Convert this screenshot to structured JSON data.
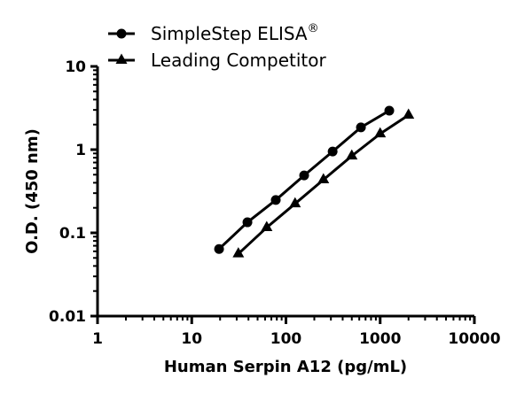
{
  "chart_data": {
    "type": "line",
    "title": "",
    "xlabel": "Human Serpin A12 (pg/mL)",
    "ylabel": "O.D. (450 nm)",
    "xscale": "log",
    "yscale": "log",
    "xlim": [
      1,
      10000
    ],
    "ylim": [
      0.01,
      10
    ],
    "xticks": [
      "1",
      "10",
      "100",
      "1000",
      "10000"
    ],
    "yticks": [
      "10",
      "1",
      "0.1",
      "0.01"
    ],
    "grid": false,
    "legend_position": "top-left",
    "series": [
      {
        "name": "SimpleStep ELISA®",
        "marker": "circle",
        "color": "#000000",
        "x": [
          19.5,
          39,
          78,
          156,
          313,
          625,
          1250
        ],
        "y": [
          0.064,
          0.134,
          0.248,
          0.49,
          0.95,
          1.85,
          2.94
        ]
      },
      {
        "name": "Leading Competitor",
        "marker": "triangle",
        "color": "#000000",
        "x": [
          31.25,
          62.5,
          125,
          250,
          500,
          1000,
          2000
        ],
        "y": [
          0.056,
          0.116,
          0.224,
          0.435,
          0.84,
          1.55,
          2.6
        ]
      }
    ]
  },
  "legend": {
    "items": [
      {
        "label": "SimpleStep ELISA",
        "superscript": "®",
        "marker": "circle"
      },
      {
        "label": "Leading Competitor",
        "superscript": "",
        "marker": "triangle"
      }
    ]
  },
  "axes": {
    "x_title": "Human Serpin A12 (pg/mL)",
    "y_title": "O.D. (450 nm)",
    "x_tick_labels": [
      "1",
      "10",
      "100",
      "1000",
      "10000"
    ],
    "y_tick_labels": [
      "10",
      "1",
      "0.1",
      "0.01"
    ]
  }
}
